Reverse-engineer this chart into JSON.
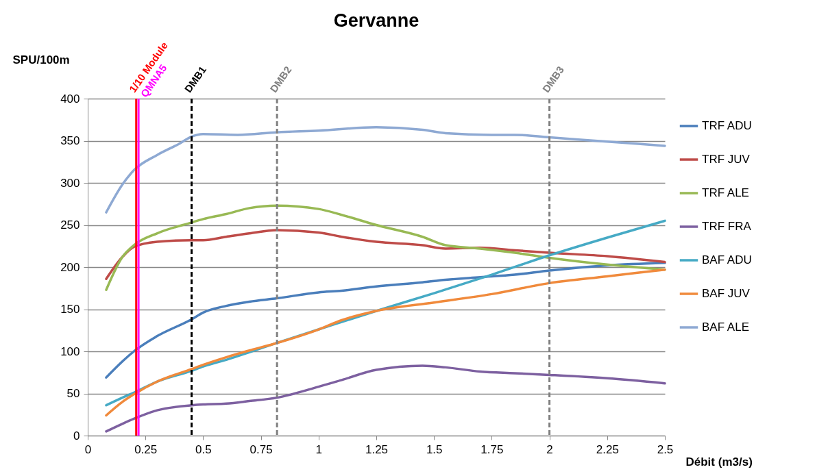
{
  "chart_data": {
    "type": "line",
    "title": "Gervanne",
    "xlabel": "Débit (m3/s)",
    "ylabel": "SPU/100m",
    "xlim": [
      0,
      2.5
    ],
    "xticks": [
      0,
      0.25,
      0.5,
      0.75,
      1,
      1.25,
      1.5,
      1.75,
      2,
      2.25,
      2.5
    ],
    "ylim": [
      0,
      400
    ],
    "yticks": [
      0,
      50,
      100,
      150,
      200,
      250,
      300,
      350,
      400
    ],
    "grid": "y",
    "legend": "right",
    "marker": "none",
    "line_style": "solid",
    "series": [
      {
        "name": "TRF ADU",
        "color": "#4a7ebb",
        "x": [
          0.08,
          0.15,
          0.2,
          0.3,
          0.45,
          0.5,
          0.6,
          0.7,
          0.82,
          1,
          1.1,
          1.25,
          1.45,
          1.55,
          1.7,
          1.85,
          2,
          2.25,
          2.5
        ],
        "values": [
          69,
          88,
          100,
          118,
          138,
          146,
          154,
          159,
          163,
          170,
          172,
          177,
          182,
          185,
          188,
          191,
          196,
          202,
          205
        ]
      },
      {
        "name": "TRF JUV",
        "color": "#be4b48",
        "x": [
          0.08,
          0.15,
          0.2,
          0.3,
          0.45,
          0.5,
          0.6,
          0.7,
          0.82,
          1,
          1.1,
          1.25,
          1.45,
          1.55,
          1.7,
          1.85,
          2,
          2.25,
          2.5
        ],
        "values": [
          186,
          212,
          224,
          230,
          232,
          232,
          236,
          240,
          244,
          241,
          236,
          230,
          226,
          222,
          223,
          220,
          217,
          213,
          206
        ]
      },
      {
        "name": "TRF ALE",
        "color": "#98b954",
        "x": [
          0.08,
          0.15,
          0.2,
          0.3,
          0.45,
          0.5,
          0.6,
          0.7,
          0.82,
          1,
          1.1,
          1.25,
          1.45,
          1.55,
          1.7,
          1.85,
          2,
          2.25,
          2.5
        ],
        "values": [
          173,
          212,
          226,
          240,
          253,
          257,
          263,
          270,
          273,
          269,
          262,
          250,
          236,
          226,
          222,
          217,
          211,
          203,
          197
        ]
      },
      {
        "name": "TRF FRA",
        "color": "#7d60a0",
        "x": [
          0.08,
          0.15,
          0.2,
          0.3,
          0.45,
          0.5,
          0.6,
          0.7,
          0.82,
          1,
          1.1,
          1.25,
          1.45,
          1.55,
          1.7,
          1.85,
          2,
          2.25,
          2.5
        ],
        "values": [
          5,
          14,
          20,
          30,
          36,
          37,
          38,
          41,
          45,
          58,
          66,
          78,
          83,
          81,
          76,
          74,
          72,
          68,
          62
        ]
      },
      {
        "name": "BAF ADU",
        "color": "#46aac5",
        "x": [
          0.08,
          0.15,
          0.2,
          0.3,
          0.45,
          0.5,
          0.6,
          0.7,
          0.82,
          1,
          1.25,
          1.5,
          1.75,
          2,
          2.25,
          2.5
        ],
        "values": [
          36,
          45,
          51,
          64,
          77,
          82,
          90,
          99,
          110,
          126,
          148,
          169,
          191,
          214,
          235,
          255
        ]
      },
      {
        "name": "BAF JUV",
        "color": "#f08a3c",
        "x": [
          0.08,
          0.15,
          0.2,
          0.3,
          0.45,
          0.5,
          0.6,
          0.7,
          0.82,
          1,
          1.1,
          1.25,
          1.5,
          1.75,
          2,
          2.25,
          2.5
        ],
        "values": [
          24,
          40,
          49,
          64,
          79,
          84,
          93,
          101,
          110,
          126,
          137,
          148,
          158,
          168,
          181,
          189,
          197
        ]
      },
      {
        "name": "BAF ALE",
        "color": "#8ea9d3",
        "x": [
          0.08,
          0.15,
          0.2,
          0.3,
          0.4,
          0.45,
          0.5,
          0.65,
          0.82,
          1,
          1.25,
          1.45,
          1.55,
          1.75,
          1.85,
          2,
          2.25,
          2.5
        ],
        "values": [
          265,
          298,
          315,
          333,
          347,
          355,
          358,
          357,
          360,
          362,
          366,
          363,
          359,
          357,
          357,
          354,
          349,
          344
        ]
      }
    ],
    "ref_lines": [
      {
        "axis": "x",
        "value": 0.21,
        "label": "1/10 Module",
        "color": "#ff0000",
        "line_style": "solid"
      },
      {
        "axis": "x",
        "value": 0.22,
        "label": "QMNA5",
        "color": "#ff00ff",
        "line_style": "solid"
      },
      {
        "axis": "x",
        "value": 0.45,
        "label": "DMB1",
        "color": "#000000",
        "line_style": "dashed"
      },
      {
        "axis": "x",
        "value": 0.82,
        "label": "DMB2",
        "color": "#808080",
        "line_style": "dashed"
      },
      {
        "axis": "x",
        "value": 2.0,
        "label": "DMB3",
        "color": "#808080",
        "line_style": "dashed"
      }
    ]
  }
}
